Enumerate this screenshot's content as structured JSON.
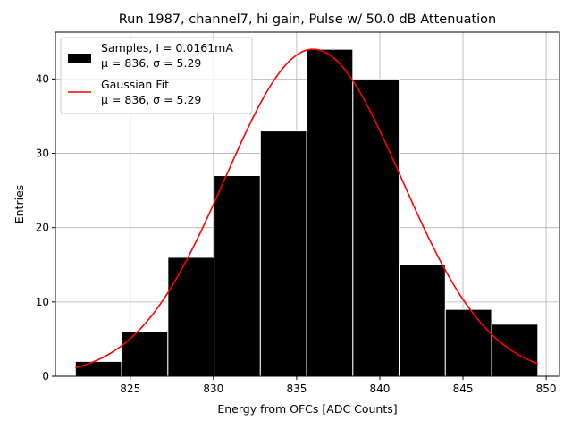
{
  "chart_data": {
    "type": "bar",
    "title": "Run 1987, channel7, hi gain, Pulse w/ 50.0 dB Attenuation",
    "xlabel": "Energy from OFCs [ADC Counts]",
    "ylabel": "Entries",
    "xlim": [
      820.5,
      850.8
    ],
    "ylim": [
      0,
      46.3
    ],
    "xticks": [
      825,
      830,
      835,
      840,
      845,
      850
    ],
    "yticks": [
      0,
      10,
      20,
      30,
      40
    ],
    "grid": true,
    "legend_position": "top-left",
    "histogram": {
      "name": "Samples, I = 0.0161mA",
      "name_line2": "μ = 836, σ = 5.29",
      "color": "#000000",
      "bin_edges": [
        821.7,
        824.48,
        827.26,
        830.04,
        832.82,
        835.6,
        838.38,
        841.16,
        843.94,
        846.72,
        849.5
      ],
      "counts": [
        2,
        6,
        16,
        27,
        33,
        44,
        40,
        15,
        9,
        7
      ]
    },
    "fit": {
      "name": "Gaussian Fit",
      "name_line2": "μ = 836, σ = 5.29",
      "color": "#ff0000",
      "type": "gaussian",
      "mu": 836,
      "sigma": 5.29,
      "amplitude": 44,
      "x_range": [
        821.7,
        849.5
      ]
    }
  }
}
